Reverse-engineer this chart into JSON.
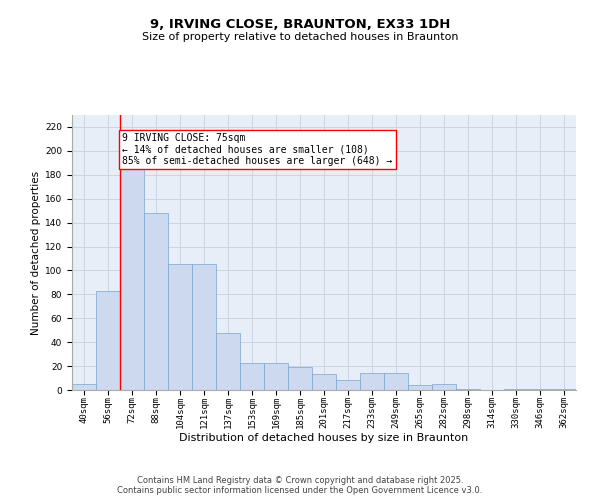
{
  "title": "9, IRVING CLOSE, BRAUNTON, EX33 1DH",
  "subtitle": "Size of property relative to detached houses in Braunton",
  "xlabel": "Distribution of detached houses by size in Braunton",
  "ylabel": "Number of detached properties",
  "categories": [
    "40sqm",
    "56sqm",
    "72sqm",
    "88sqm",
    "104sqm",
    "121sqm",
    "137sqm",
    "153sqm",
    "169sqm",
    "185sqm",
    "201sqm",
    "217sqm",
    "233sqm",
    "249sqm",
    "265sqm",
    "282sqm",
    "298sqm",
    "314sqm",
    "330sqm",
    "346sqm",
    "362sqm"
  ],
  "values": [
    5,
    83,
    190,
    148,
    105,
    105,
    48,
    23,
    23,
    19,
    13,
    8,
    14,
    14,
    4,
    5,
    1,
    0,
    1,
    1,
    1
  ],
  "bar_color": "#ccd9ee",
  "bar_edge_color": "#7aa5d0",
  "bar_edge_width": 0.5,
  "red_line_index": 2,
  "annotation_text": "9 IRVING CLOSE: 75sqm\n← 14% of detached houses are smaller (108)\n85% of semi-detached houses are larger (648) →",
  "annotation_box_color": "white",
  "annotation_box_edge_color": "red",
  "ylim": [
    0,
    230
  ],
  "yticks": [
    0,
    20,
    40,
    60,
    80,
    100,
    120,
    140,
    160,
    180,
    200,
    220
  ],
  "grid_color": "#c8d0de",
  "background_color": "#e8eef8",
  "footer_text": "Contains HM Land Registry data © Crown copyright and database right 2025.\nContains public sector information licensed under the Open Government Licence v3.0.",
  "title_fontsize": 9.5,
  "subtitle_fontsize": 8,
  "xlabel_fontsize": 8,
  "ylabel_fontsize": 7.5,
  "tick_fontsize": 6.5,
  "annotation_fontsize": 7,
  "footer_fontsize": 6
}
